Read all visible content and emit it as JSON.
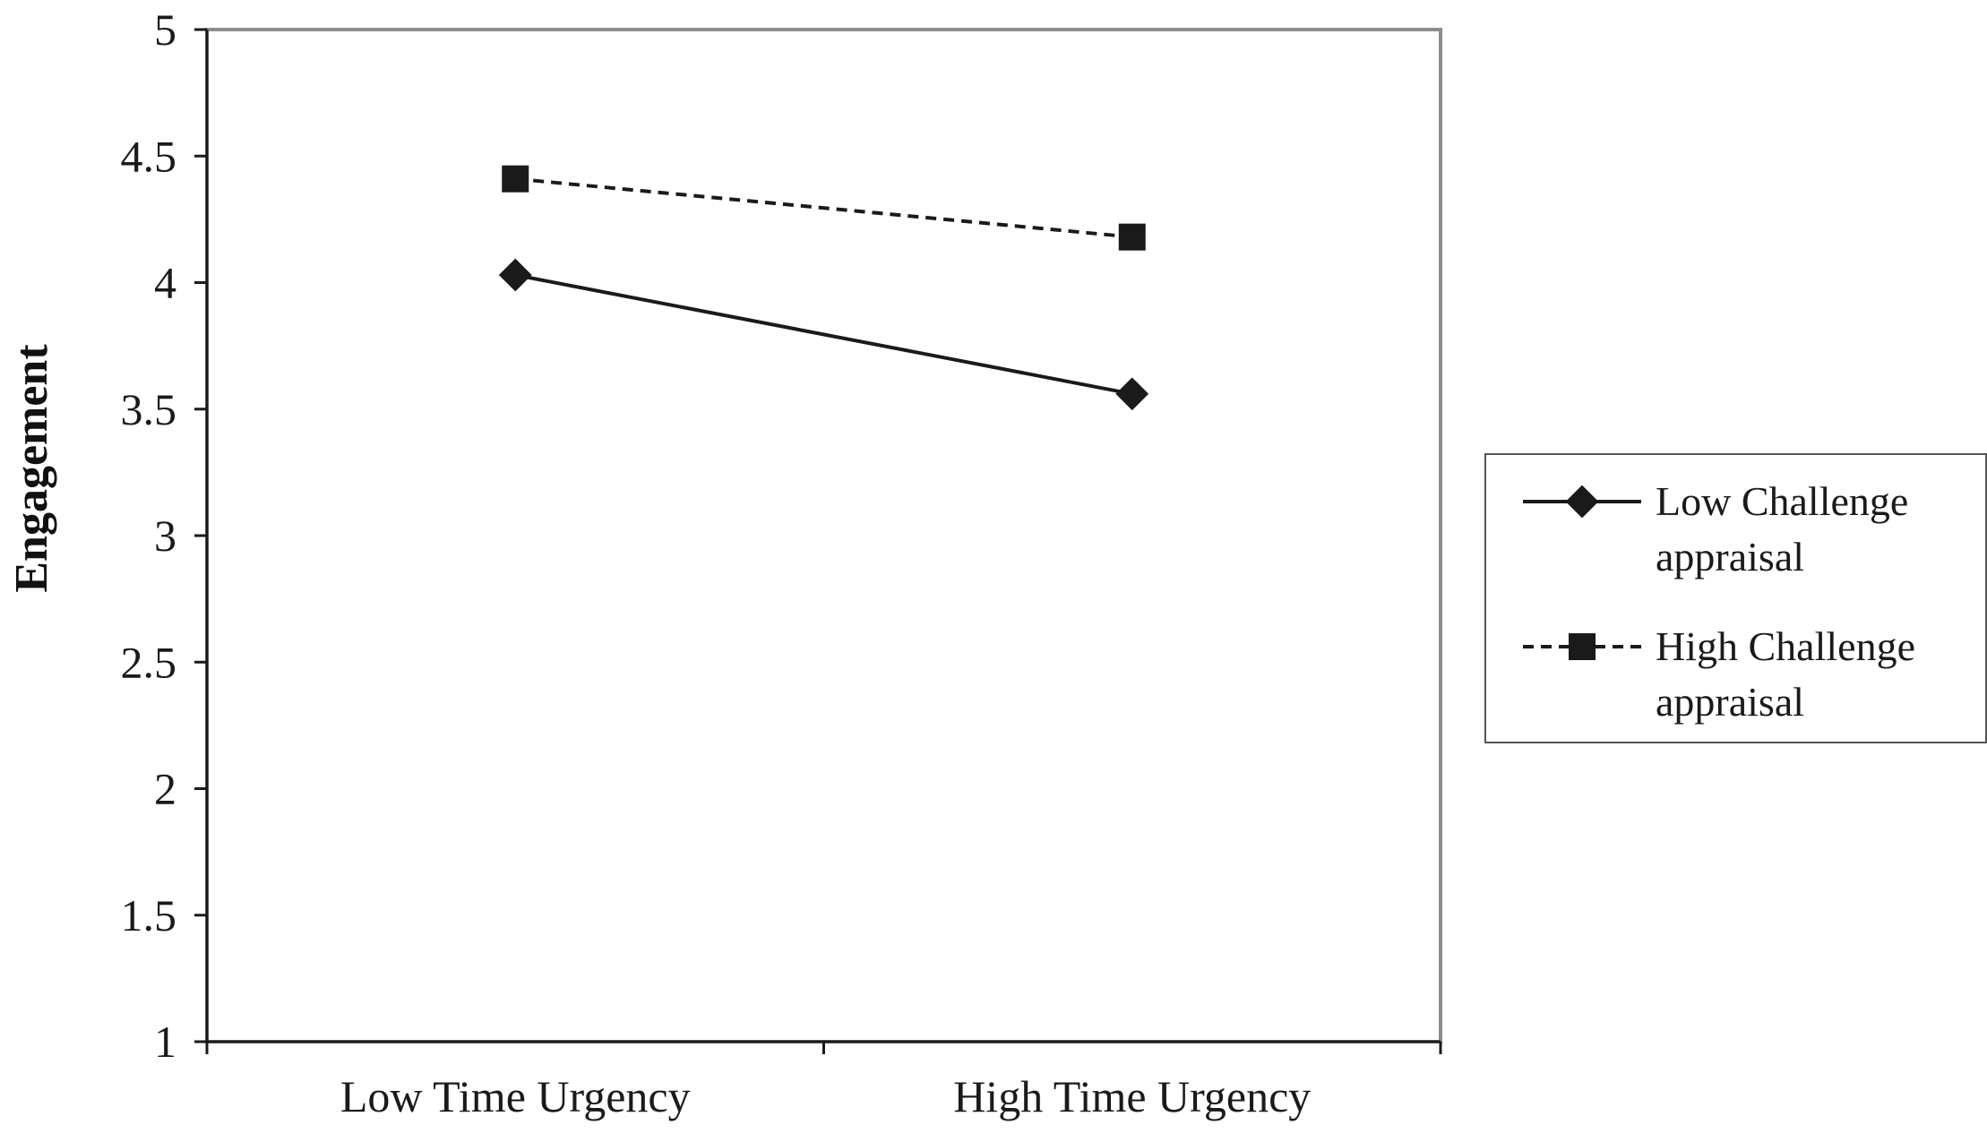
{
  "chart_data": {
    "type": "line",
    "categories": [
      "Low Time Urgency",
      "High Time Urgency"
    ],
    "ylabel": "Engagement",
    "ylim": [
      1,
      5
    ],
    "yticks": [
      "1",
      "1.5",
      "2",
      "2.5",
      "3",
      "3.5",
      "4",
      "4.5",
      "5"
    ],
    "grid": false,
    "legend_position": "right",
    "series": [
      {
        "name_lines": [
          "Low Challenge",
          "appraisal"
        ],
        "values": [
          4.03,
          3.56
        ],
        "line_style": "solid",
        "marker": "diamond",
        "color": "#1a1a1a"
      },
      {
        "name_lines": [
          "High Challenge",
          "appraisal"
        ],
        "values": [
          4.41,
          4.18
        ],
        "line_style": "dashed",
        "marker": "square",
        "color": "#1a1a1a"
      }
    ]
  }
}
